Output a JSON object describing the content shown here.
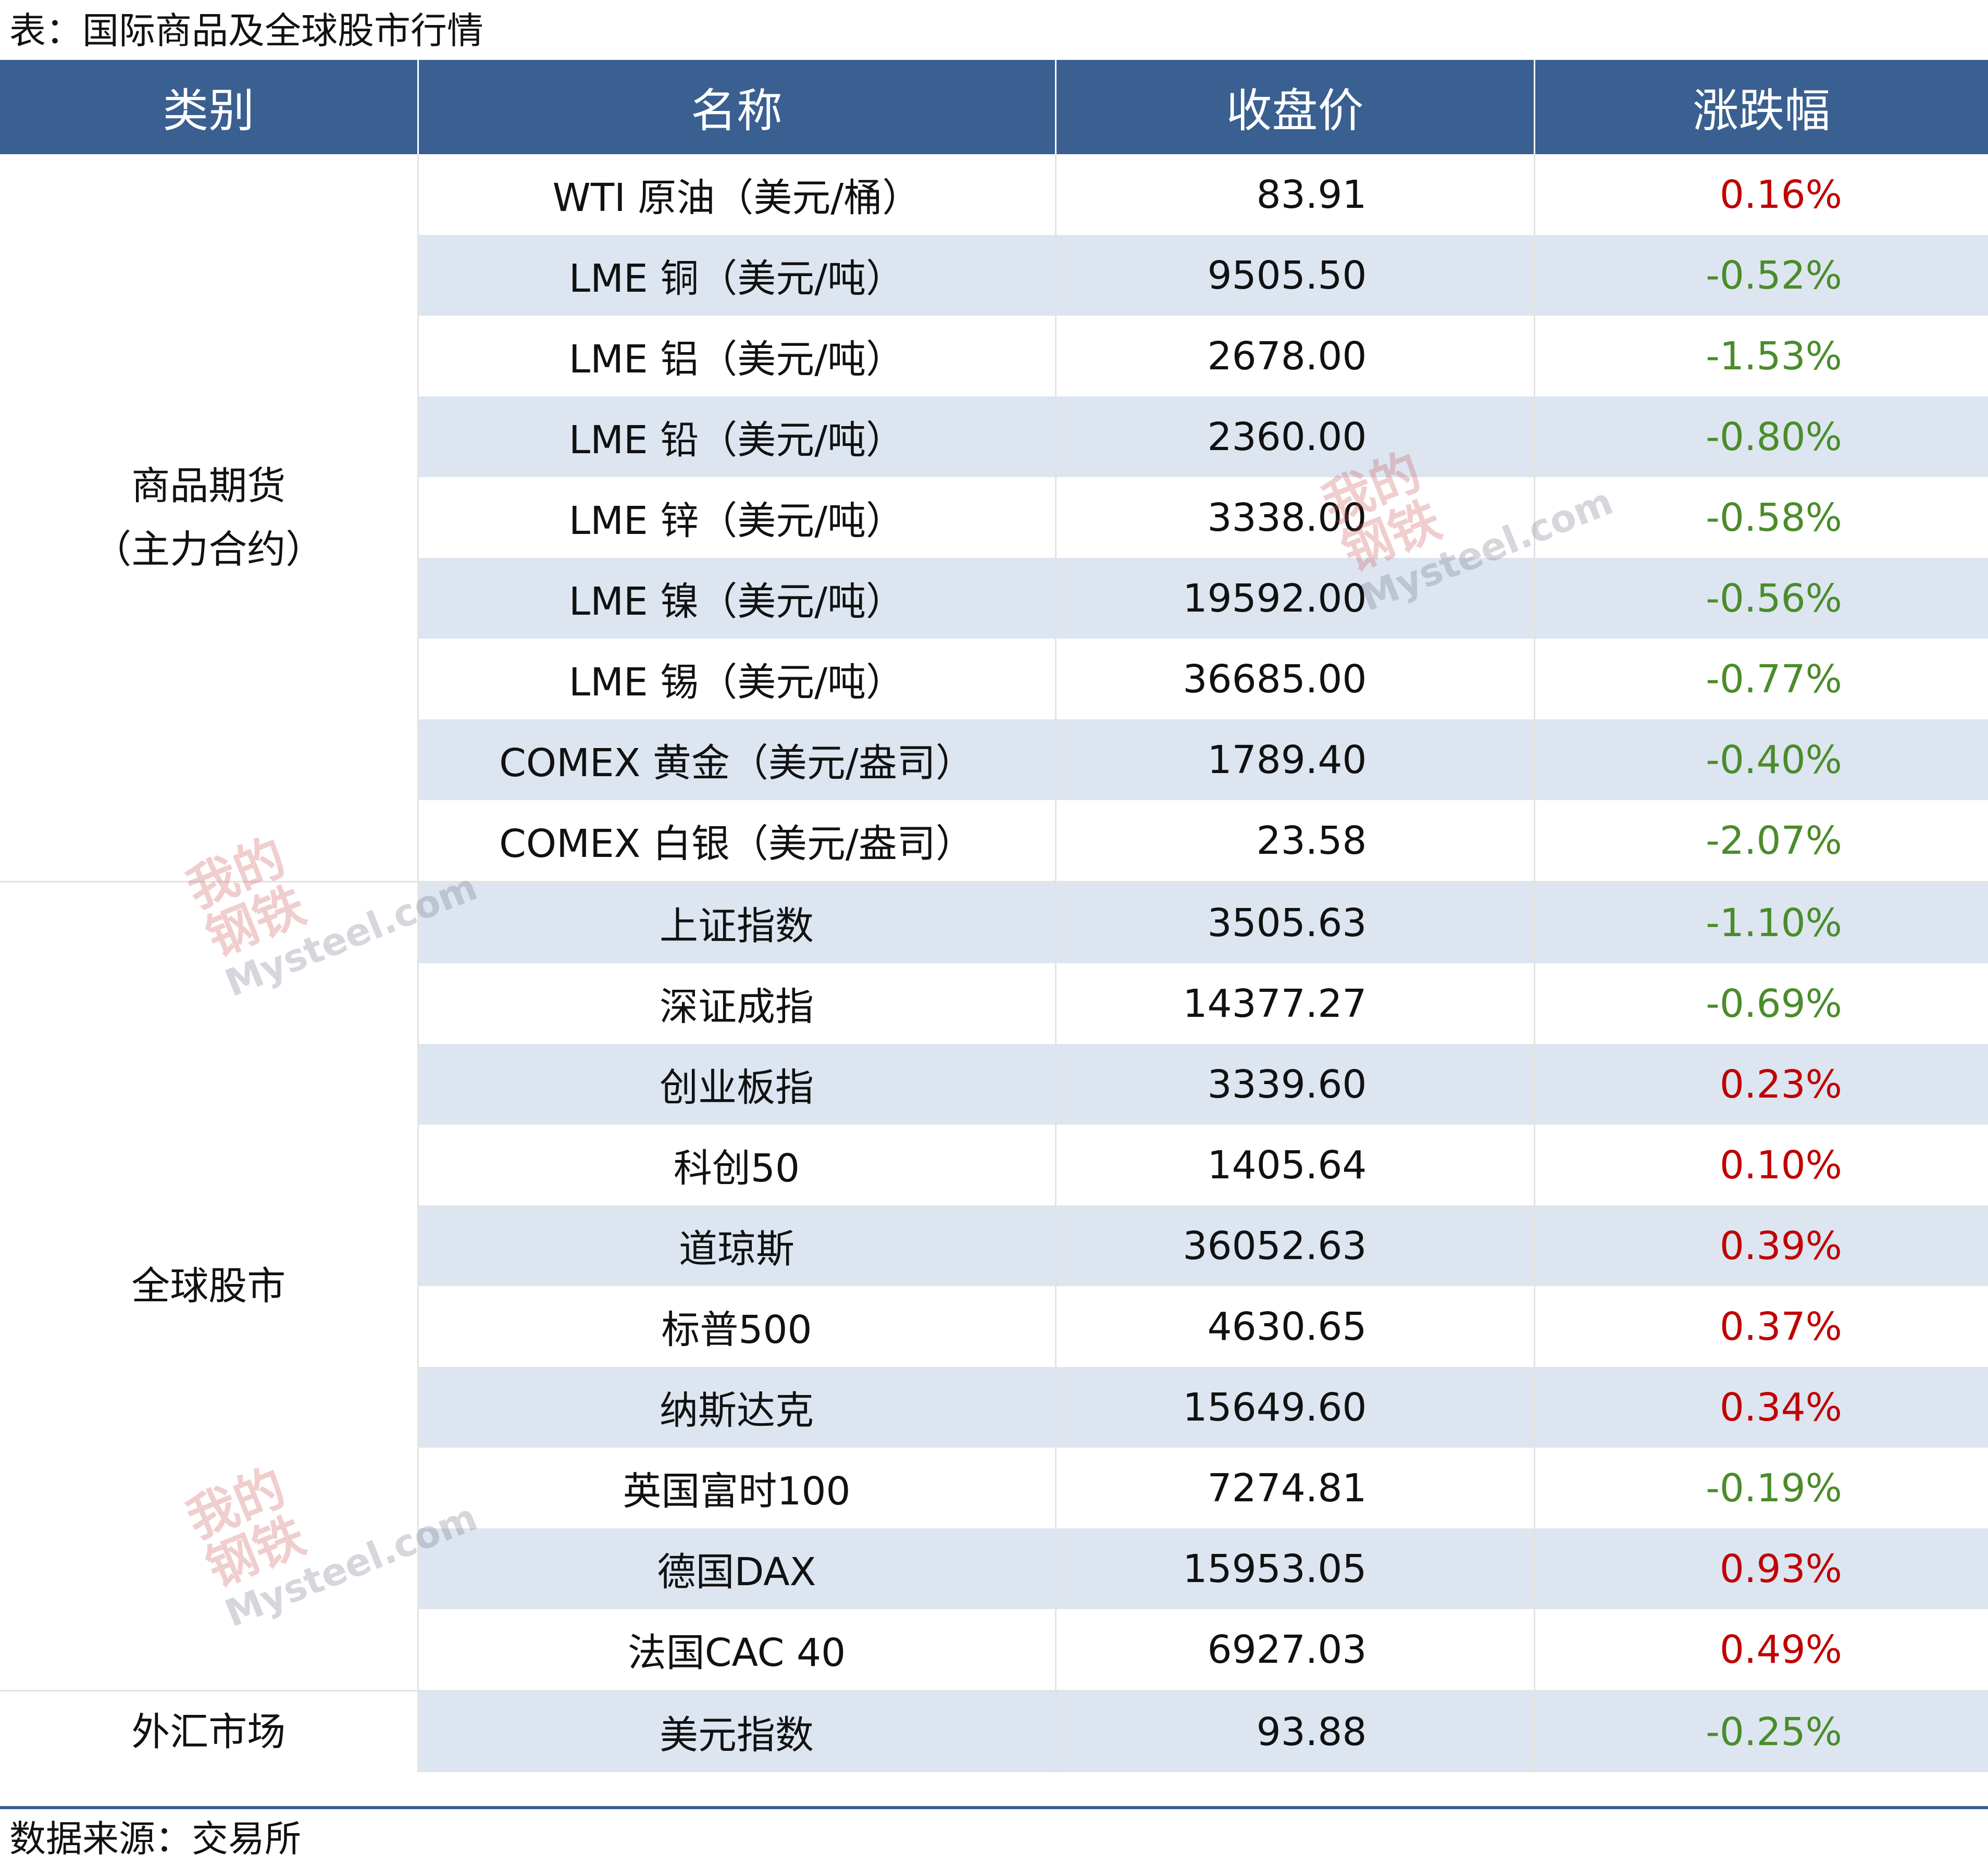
{
  "title": "表：国际商品及全球股市行情",
  "footer": "数据来源：交易所",
  "header": {
    "category": "类别",
    "name": "名称",
    "close": "收盘价",
    "change": "涨跌幅"
  },
  "colors": {
    "header_bg": "#3a5f91",
    "up": "#c00000",
    "down": "#4a8c2a",
    "shade": "#dce5f0"
  },
  "watermark": {
    "cn_line1": "我的",
    "cn_line2": "钢铁",
    "en": "Mysteel.com"
  },
  "groups": [
    {
      "category_line1": "商品期货",
      "category_line2": "（主力合约）",
      "rows": [
        {
          "name": "WTI 原油（美元/桶）",
          "close": "83.91",
          "change": "0.16%",
          "dir": "up"
        },
        {
          "name": "LME 铜（美元/吨）",
          "close": "9505.50",
          "change": "-0.52%",
          "dir": "down"
        },
        {
          "name": "LME 铝（美元/吨）",
          "close": "2678.00",
          "change": "-1.53%",
          "dir": "down"
        },
        {
          "name": "LME 铅（美元/吨）",
          "close": "2360.00",
          "change": "-0.80%",
          "dir": "down"
        },
        {
          "name": "LME 锌（美元/吨）",
          "close": "3338.00",
          "change": "-0.58%",
          "dir": "down"
        },
        {
          "name": "LME 镍（美元/吨）",
          "close": "19592.00",
          "change": "-0.56%",
          "dir": "down"
        },
        {
          "name": "LME 锡（美元/吨）",
          "close": "36685.00",
          "change": "-0.77%",
          "dir": "down"
        },
        {
          "name": "COMEX 黄金（美元/盎司）",
          "close": "1789.40",
          "change": "-0.40%",
          "dir": "down"
        },
        {
          "name": "COMEX 白银（美元/盎司）",
          "close": "23.58",
          "change": "-2.07%",
          "dir": "down"
        }
      ]
    },
    {
      "category_line1": "全球股市",
      "category_line2": "",
      "rows": [
        {
          "name": "上证指数",
          "close": "3505.63",
          "change": "-1.10%",
          "dir": "down"
        },
        {
          "name": "深证成指",
          "close": "14377.27",
          "change": "-0.69%",
          "dir": "down"
        },
        {
          "name": "创业板指",
          "close": "3339.60",
          "change": "0.23%",
          "dir": "up"
        },
        {
          "name": "科创50",
          "close": "1405.64",
          "change": "0.10%",
          "dir": "up"
        },
        {
          "name": "道琼斯",
          "close": "36052.63",
          "change": "0.39%",
          "dir": "up"
        },
        {
          "name": "标普500",
          "close": "4630.65",
          "change": "0.37%",
          "dir": "up"
        },
        {
          "name": "纳斯达克",
          "close": "15649.60",
          "change": "0.34%",
          "dir": "up"
        },
        {
          "name": "英国富时100",
          "close": "7274.81",
          "change": "-0.19%",
          "dir": "down"
        },
        {
          "name": "德国DAX",
          "close": "15953.05",
          "change": "0.93%",
          "dir": "up"
        },
        {
          "name": "法国CAC 40",
          "close": "6927.03",
          "change": "0.49%",
          "dir": "up"
        }
      ]
    },
    {
      "category_line1": "外汇市场",
      "category_line2": "",
      "rows": [
        {
          "name": "美元指数",
          "close": "93.88",
          "change": "-0.25%",
          "dir": "down"
        }
      ]
    }
  ]
}
